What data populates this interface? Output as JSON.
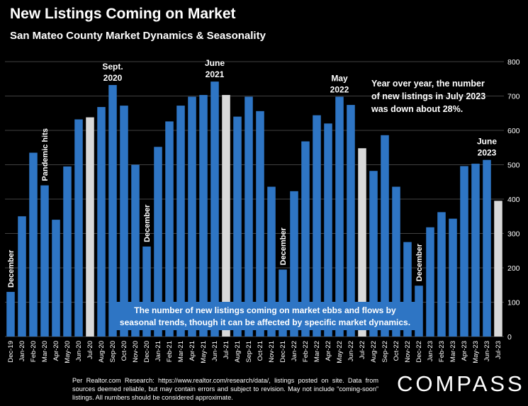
{
  "title": "New Listings Coming on Market",
  "subtitle": "San Mateo County Market Dynamics & Seasonality",
  "footnote": "Per Realtor.com Research: https://www.realtor.com/research/data/, listings posted on site. Data from sources deemed reliable, but may contain errors and subject to revision. May not include “coming-soon” listings. All numbers should be considered approximate.",
  "logo": "COMPASS",
  "colors": {
    "bar": "#2e75c4",
    "highlight": "#d9d9d9",
    "plot_bg": "#000000",
    "callout_bg": "#2e75c4"
  },
  "chart_data": {
    "type": "bar",
    "categories": [
      "Dec-19",
      "Jan-20",
      "Feb-20",
      "Mar-20",
      "Apr-20",
      "May-20",
      "Jun-20",
      "Jul-20",
      "Aug-20",
      "Sep-20",
      "Oct-20",
      "Nov-20",
      "Dec-20",
      "Jan-21",
      "Feb-21",
      "Mar-21",
      "Apr-21",
      "May-21",
      "Jun-21",
      "Jul-21",
      "Aug-21",
      "Sep-21",
      "Oct-21",
      "Nov-21",
      "Dec-21",
      "Jan-22",
      "Feb-22",
      "Mar-22",
      "Apr-22",
      "May-22",
      "Jun-22",
      "Jul-22",
      "Aug-22",
      "Sep-22",
      "Oct-22",
      "Nov-22",
      "Dec-22",
      "Jan-23",
      "Feb-23",
      "Mar-23",
      "Apr-23",
      "May-23",
      "Jun-23",
      "Jul-23"
    ],
    "values": [
      130,
      350,
      535,
      440,
      340,
      495,
      632,
      638,
      668,
      732,
      672,
      500,
      262,
      552,
      626,
      672,
      698,
      703,
      742,
      703,
      640,
      698,
      656,
      436,
      195,
      423,
      568,
      644,
      620,
      698,
      674,
      548,
      482,
      586,
      436,
      275,
      148,
      318,
      362,
      343,
      496,
      503,
      514,
      395
    ],
    "highlight_categories": [
      "Jul-20",
      "Jul-21",
      "Jul-22",
      "Jul-23"
    ],
    "ylim": [
      0,
      800
    ],
    "yticks": [
      0,
      100,
      200,
      300,
      400,
      500,
      600,
      700,
      800
    ],
    "y_axis_side": "right",
    "grid": true,
    "annotations": [
      {
        "text": "December",
        "category": "Dec-19",
        "orientation": "vertical"
      },
      {
        "text": "Pandemic hits",
        "category": "Mar-20",
        "orientation": "vertical"
      },
      {
        "text": "December",
        "category": "Dec-20",
        "orientation": "vertical"
      },
      {
        "text": "December",
        "category": "Dec-21",
        "orientation": "vertical"
      },
      {
        "text": "December",
        "category": "Dec-22",
        "orientation": "vertical"
      },
      {
        "lines": [
          "Sept.",
          "2020"
        ],
        "category": "Sep-20"
      },
      {
        "lines": [
          "June",
          "2021"
        ],
        "category": "Jun-21"
      },
      {
        "lines": [
          "May",
          "2022"
        ],
        "category": "May-22"
      },
      {
        "lines": [
          "June",
          "2023"
        ],
        "category": "Jun-23"
      }
    ],
    "notes": [
      {
        "lines": [
          "Year over year, the number",
          "of new listings in July 2023",
          "was down about 28%."
        ]
      },
      {
        "lines": [
          "The number of new listings coming on market ebbs and flows by",
          "seasonal trends, though it can be affected by specific market dynamics."
        ],
        "callout": true
      }
    ]
  }
}
